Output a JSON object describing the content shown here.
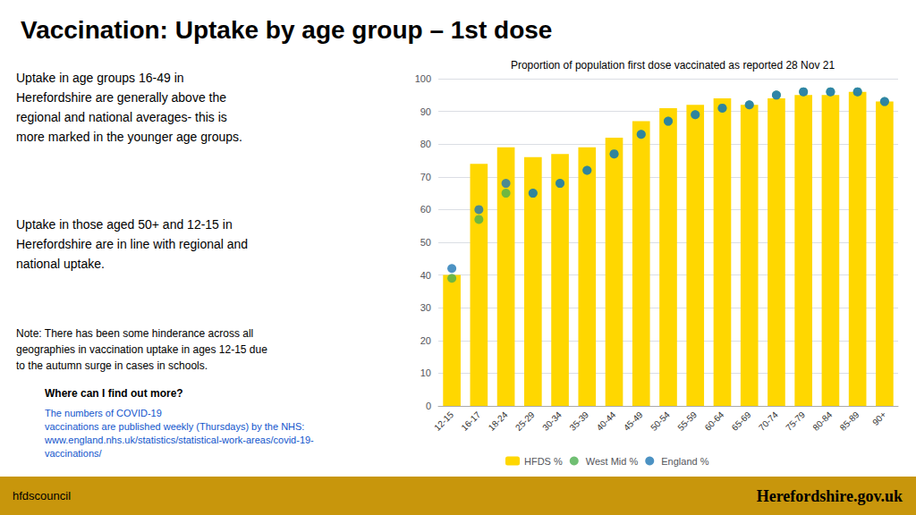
{
  "chart_data": {
    "type": "bar",
    "title": "Vaccination: Uptake by age group – 1st dose",
    "subtitle": "Proportion of population first dose vaccinated as reported 28 Nov 21",
    "categories": [
      "12-15",
      "16-17",
      "18-24",
      "25-29",
      "30-34",
      "35-39",
      "40-44",
      "45-49",
      "50-54",
      "55-59",
      "60-64",
      "65-69",
      "70-74",
      "75-79",
      "80-84",
      "85-89",
      "90+"
    ],
    "series": [
      {
        "name": "HFDS %",
        "type": "bar",
        "color": "#FFD700",
        "values": [
          40,
          74,
          79,
          76,
          77,
          79,
          82,
          87,
          91,
          92,
          94,
          92,
          94,
          95,
          95,
          96,
          93
        ]
      },
      {
        "name": "West Mid %",
        "type": "scatter",
        "color": "#4CAF50",
        "marker": "circle",
        "values": [
          39,
          57,
          65,
          65,
          68,
          72,
          77,
          83,
          87,
          89,
          91,
          92,
          95,
          96,
          96,
          96,
          93
        ]
      },
      {
        "name": "England %",
        "type": "scatter",
        "color": "#1F77B4",
        "marker": "circle",
        "values": [
          42,
          60,
          68,
          65,
          68,
          72,
          77,
          83,
          87,
          89,
          91,
          92,
          95,
          96,
          96,
          96,
          93
        ]
      }
    ],
    "ylim": [
      0,
      100
    ],
    "yticks": [
      0,
      10,
      20,
      30,
      40,
      50,
      60,
      70,
      80,
      90,
      100
    ],
    "grid": true,
    "legend": "bottom",
    "annotations": [
      "Uptake in age groups 16-49 in\nHerefordshire are generally above the\nregional and national averages- this is\nmore marked in the younger age groups.",
      "Uptake in those aged 50+ and 12-15 in\nHerefordshire are in line with regional and\nnational uptake.",
      "Note: There has been some hinderance across all\ngeographies in vaccination uptake in ages 12-15 due\nto the autumn surge in cases in schools.",
      "Where can I find out more?",
      "The numbers of COVID-19\nvaccinations are published weekly (Thursdays) by the NHS:\nwww.england.nhs.uk/statistics/statistical-work-areas/covid-19-\nvaccinations/",
      "hfdscouncil",
      "Herefordshire.gov.uk"
    ]
  }
}
